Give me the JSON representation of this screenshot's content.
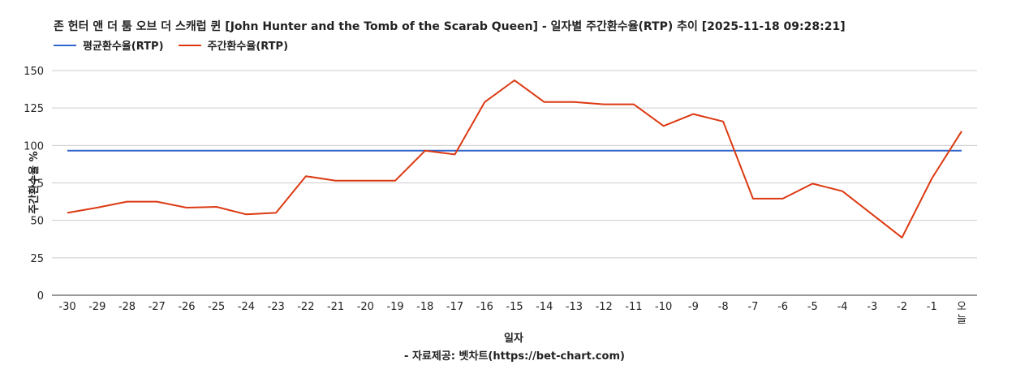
{
  "chart_data": {
    "type": "line",
    "title": "존 헌터 앤 더 툼 오브 더 스캐럽 퀸 [John Hunter and the Tomb of the Scarab Queen] - 일자별 주간환수율(RTP) 추이 [2025-11-18 09:28:21]",
    "xlabel": "일자",
    "ylabel": "주간환수율 %",
    "ylim": [
      0,
      150
    ],
    "yticks": [
      "0",
      "25",
      "50",
      "75",
      "100",
      "125",
      "150"
    ],
    "grid": true,
    "legend_position": "top-left",
    "categories": [
      "-30",
      "-29",
      "-28",
      "-27",
      "-26",
      "-25",
      "-24",
      "-23",
      "-22",
      "-21",
      "-20",
      "-19",
      "-18",
      "-17",
      "-16",
      "-15",
      "-14",
      "-13",
      "-12",
      "-11",
      "-10",
      "-9",
      "-8",
      "-7",
      "-6",
      "-5",
      "-4",
      "-3",
      "-2",
      "-1",
      "오늘"
    ],
    "series": [
      {
        "name": "평균환수율(RTP)",
        "color": "#3366cc",
        "values": [
          96.5,
          96.5,
          96.5,
          96.5,
          96.5,
          96.5,
          96.5,
          96.5,
          96.5,
          96.5,
          96.5,
          96.5,
          96.5,
          96.5,
          96.5,
          96.5,
          96.5,
          96.5,
          96.5,
          96.5,
          96.5,
          96.5,
          96.5,
          96.5,
          96.5,
          96.5,
          96.5,
          96.5,
          96.5,
          96.5,
          96.5
        ]
      },
      {
        "name": "주간환수율(RTP)",
        "color": "#dc3912",
        "values": [
          55,
          58.5,
          62.5,
          62.5,
          58.5,
          59,
          54,
          55,
          79.5,
          76.5,
          76.5,
          76.5,
          96.5,
          94,
          129,
          143.5,
          129,
          129,
          127.5,
          127.5,
          113,
          121,
          116,
          64.5,
          64.5,
          74.5,
          69.5,
          54,
          38.5,
          78,
          109.5
        ]
      }
    ],
    "source_note": "- 자료제공: 벳차트(https://bet-chart.com)"
  }
}
